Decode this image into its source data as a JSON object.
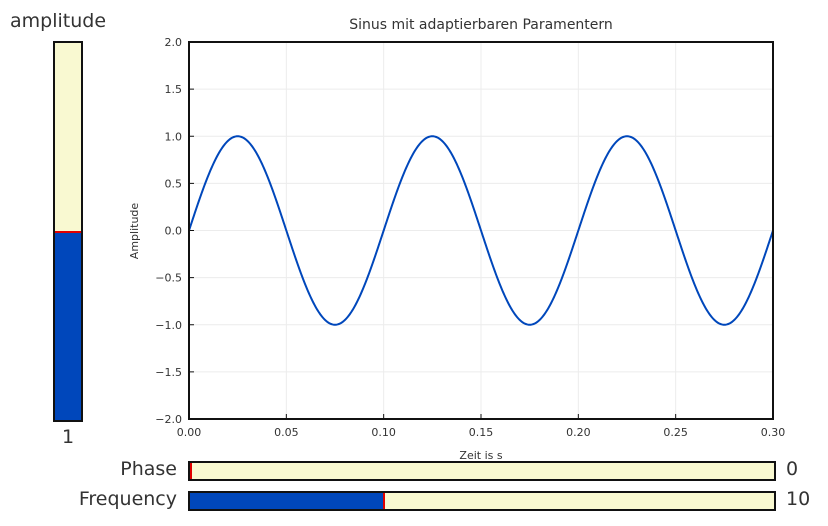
{
  "sliders": {
    "amplitude": {
      "label": "amplitude",
      "value_text": "1",
      "fraction": 0.5
    },
    "phase": {
      "label": "Phase",
      "value_text": "0",
      "fraction": 0.0
    },
    "frequency": {
      "label": "Frequency",
      "value_text": "10",
      "fraction": 0.333
    }
  },
  "colors": {
    "fill": "#0047bb",
    "track": "#f9f9d1",
    "handle": "#e00000",
    "line": "#0047bb"
  },
  "chart_data": {
    "type": "line",
    "title": "Sinus mit adaptierbaren Paramentern",
    "xlabel": "Zeit is s",
    "ylabel": "Amplitude",
    "xlim": [
      0.0,
      0.3
    ],
    "ylim": [
      -2.0,
      2.0
    ],
    "x_ticks": [
      "0.00",
      "0.05",
      "0.10",
      "0.15",
      "0.20",
      "0.25",
      "0.30"
    ],
    "y_ticks": [
      "2.0",
      "1.5",
      "1.0",
      "0.5",
      "0.0",
      "−0.5",
      "−1.0",
      "−1.5",
      "−2.0"
    ],
    "grid": true,
    "series": [
      {
        "amplitude": 1,
        "frequency": 10,
        "phase": 0,
        "function": "amplitude*sin(2*pi*frequency*t + phase)"
      }
    ]
  }
}
